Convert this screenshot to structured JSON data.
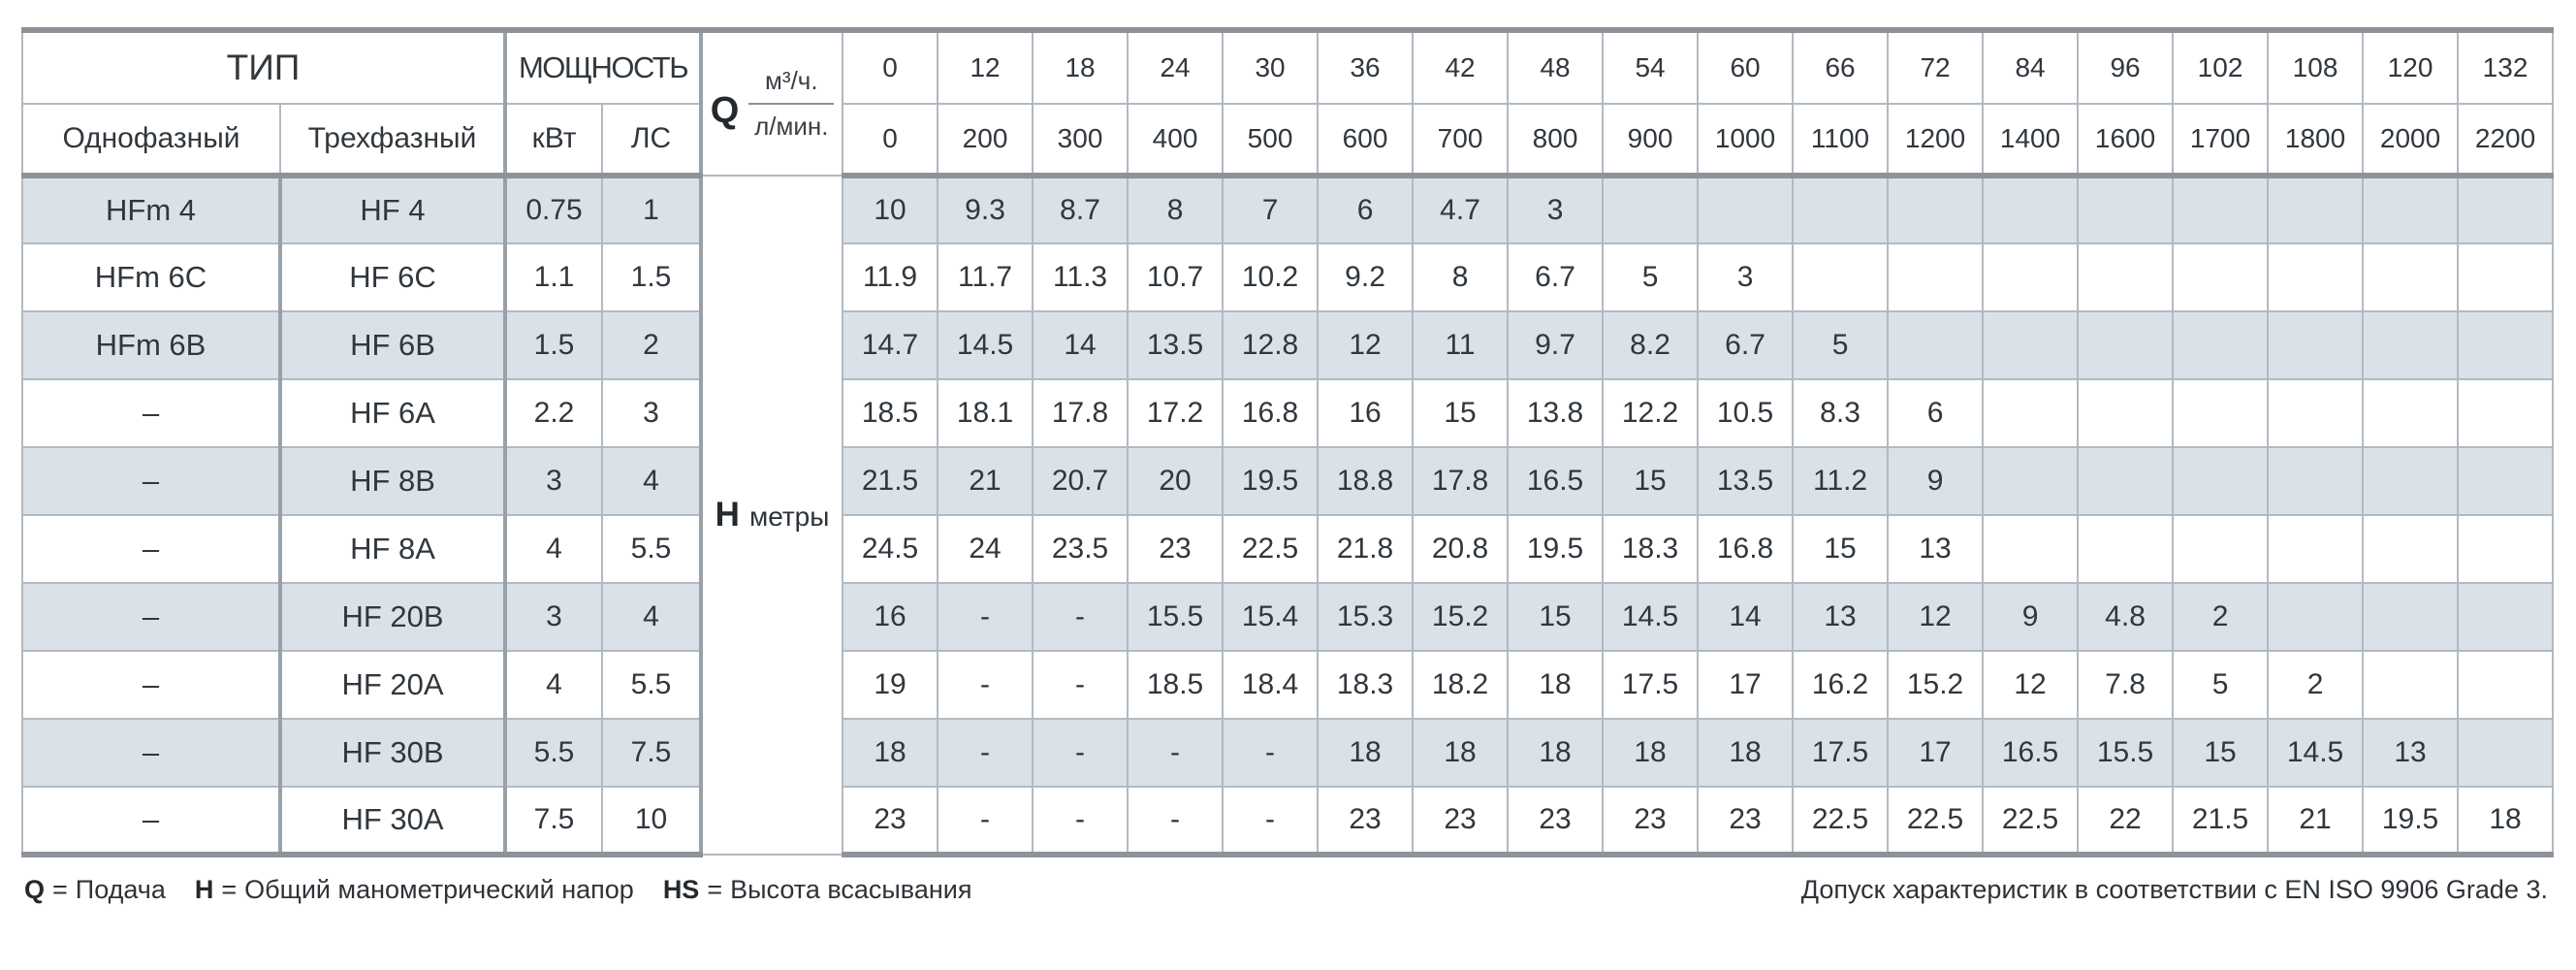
{
  "colors": {
    "row_shaded": "#dae1e9",
    "row_plain": "#ffffff",
    "grid_line": "#b2bac1",
    "heavy_line": "#8e9399",
    "separator_line": "#99a1a8",
    "text": "#2e3338"
  },
  "header": {
    "type_label": "ТИП",
    "power_label": "МОЩНОСТЬ",
    "single_phase_label": "Однофазный",
    "three_phase_label": "Трехфазный",
    "kw_label": "кВт",
    "hp_label": "ЛС",
    "q_label": "Q",
    "m3h_label": "м³/ч.",
    "lmin_label": "л/мин.",
    "h_label": "Н",
    "h_unit_label": "метры",
    "m3h_values": [
      "0",
      "12",
      "18",
      "24",
      "30",
      "36",
      "42",
      "48",
      "54",
      "60",
      "66",
      "72",
      "84",
      "96",
      "102",
      "108",
      "120",
      "132"
    ],
    "lmin_values": [
      "0",
      "200",
      "300",
      "400",
      "500",
      "600",
      "700",
      "800",
      "900",
      "1000",
      "1100",
      "1200",
      "1400",
      "1600",
      "1700",
      "1800",
      "2000",
      "2200"
    ]
  },
  "rows": [
    {
      "single": "HFm 4",
      "three": "HF 4",
      "kw": "0.75",
      "hp": "1",
      "shaded": true,
      "h": [
        "10",
        "9.3",
        "8.7",
        "8",
        "7",
        "6",
        "4.7",
        "3",
        "",
        "",
        "",
        "",
        "",
        "",
        "",
        "",
        "",
        ""
      ]
    },
    {
      "single": "HFm 6C",
      "three": "HF 6C",
      "kw": "1.1",
      "hp": "1.5",
      "shaded": false,
      "h": [
        "11.9",
        "11.7",
        "11.3",
        "10.7",
        "10.2",
        "9.2",
        "8",
        "6.7",
        "5",
        "3",
        "",
        "",
        "",
        "",
        "",
        "",
        "",
        ""
      ]
    },
    {
      "single": "HFm 6B",
      "three": "HF 6B",
      "kw": "1.5",
      "hp": "2",
      "shaded": true,
      "h": [
        "14.7",
        "14.5",
        "14",
        "13.5",
        "12.8",
        "12",
        "11",
        "9.7",
        "8.2",
        "6.7",
        "5",
        "",
        "",
        "",
        "",
        "",
        "",
        ""
      ]
    },
    {
      "single": "–",
      "three": "HF 6A",
      "kw": "2.2",
      "hp": "3",
      "shaded": false,
      "h": [
        "18.5",
        "18.1",
        "17.8",
        "17.2",
        "16.8",
        "16",
        "15",
        "13.8",
        "12.2",
        "10.5",
        "8.3",
        "6",
        "",
        "",
        "",
        "",
        "",
        ""
      ]
    },
    {
      "single": "–",
      "three": "HF 8B",
      "kw": "3",
      "hp": "4",
      "shaded": true,
      "h": [
        "21.5",
        "21",
        "20.7",
        "20",
        "19.5",
        "18.8",
        "17.8",
        "16.5",
        "15",
        "13.5",
        "11.2",
        "9",
        "",
        "",
        "",
        "",
        "",
        ""
      ]
    },
    {
      "single": "–",
      "three": "HF 8A",
      "kw": "4",
      "hp": "5.5",
      "shaded": false,
      "h": [
        "24.5",
        "24",
        "23.5",
        "23",
        "22.5",
        "21.8",
        "20.8",
        "19.5",
        "18.3",
        "16.8",
        "15",
        "13",
        "",
        "",
        "",
        "",
        "",
        ""
      ]
    },
    {
      "single": "–",
      "three": "HF 20B",
      "kw": "3",
      "hp": "4",
      "shaded": true,
      "h": [
        "16",
        "-",
        "-",
        "15.5",
        "15.4",
        "15.3",
        "15.2",
        "15",
        "14.5",
        "14",
        "13",
        "12",
        "9",
        "4.8",
        "2",
        "",
        "",
        ""
      ]
    },
    {
      "single": "–",
      "three": "HF 20A",
      "kw": "4",
      "hp": "5.5",
      "shaded": false,
      "h": [
        "19",
        "-",
        "-",
        "18.5",
        "18.4",
        "18.3",
        "18.2",
        "18",
        "17.5",
        "17",
        "16.2",
        "15.2",
        "12",
        "7.8",
        "5",
        "2",
        "",
        ""
      ]
    },
    {
      "single": "–",
      "three": "HF 30B",
      "kw": "5.5",
      "hp": "7.5",
      "shaded": true,
      "h": [
        "18",
        "-",
        "-",
        "-",
        "-",
        "18",
        "18",
        "18",
        "18",
        "18",
        "17.5",
        "17",
        "16.5",
        "15.5",
        "15",
        "14.5",
        "13",
        ""
      ]
    },
    {
      "single": "–",
      "three": "HF 30A",
      "kw": "7.5",
      "hp": "10",
      "shaded": false,
      "h": [
        "23",
        "-",
        "-",
        "-",
        "-",
        "23",
        "23",
        "23",
        "23",
        "23",
        "22.5",
        "22.5",
        "22.5",
        "22",
        "21.5",
        "21",
        "19.5",
        "18"
      ]
    }
  ],
  "footer": {
    "legend": [
      {
        "symbol": "Q",
        "eq": "=",
        "text": "Подача"
      },
      {
        "symbol": "Н",
        "eq": "=",
        "text": "Общий манометрический напор"
      },
      {
        "symbol": "HS",
        "eq": "=",
        "text": "Высота всасывания"
      }
    ],
    "tolerance": "Допуск характеристик в соответствии с EN ISO 9906 Grade 3."
  }
}
